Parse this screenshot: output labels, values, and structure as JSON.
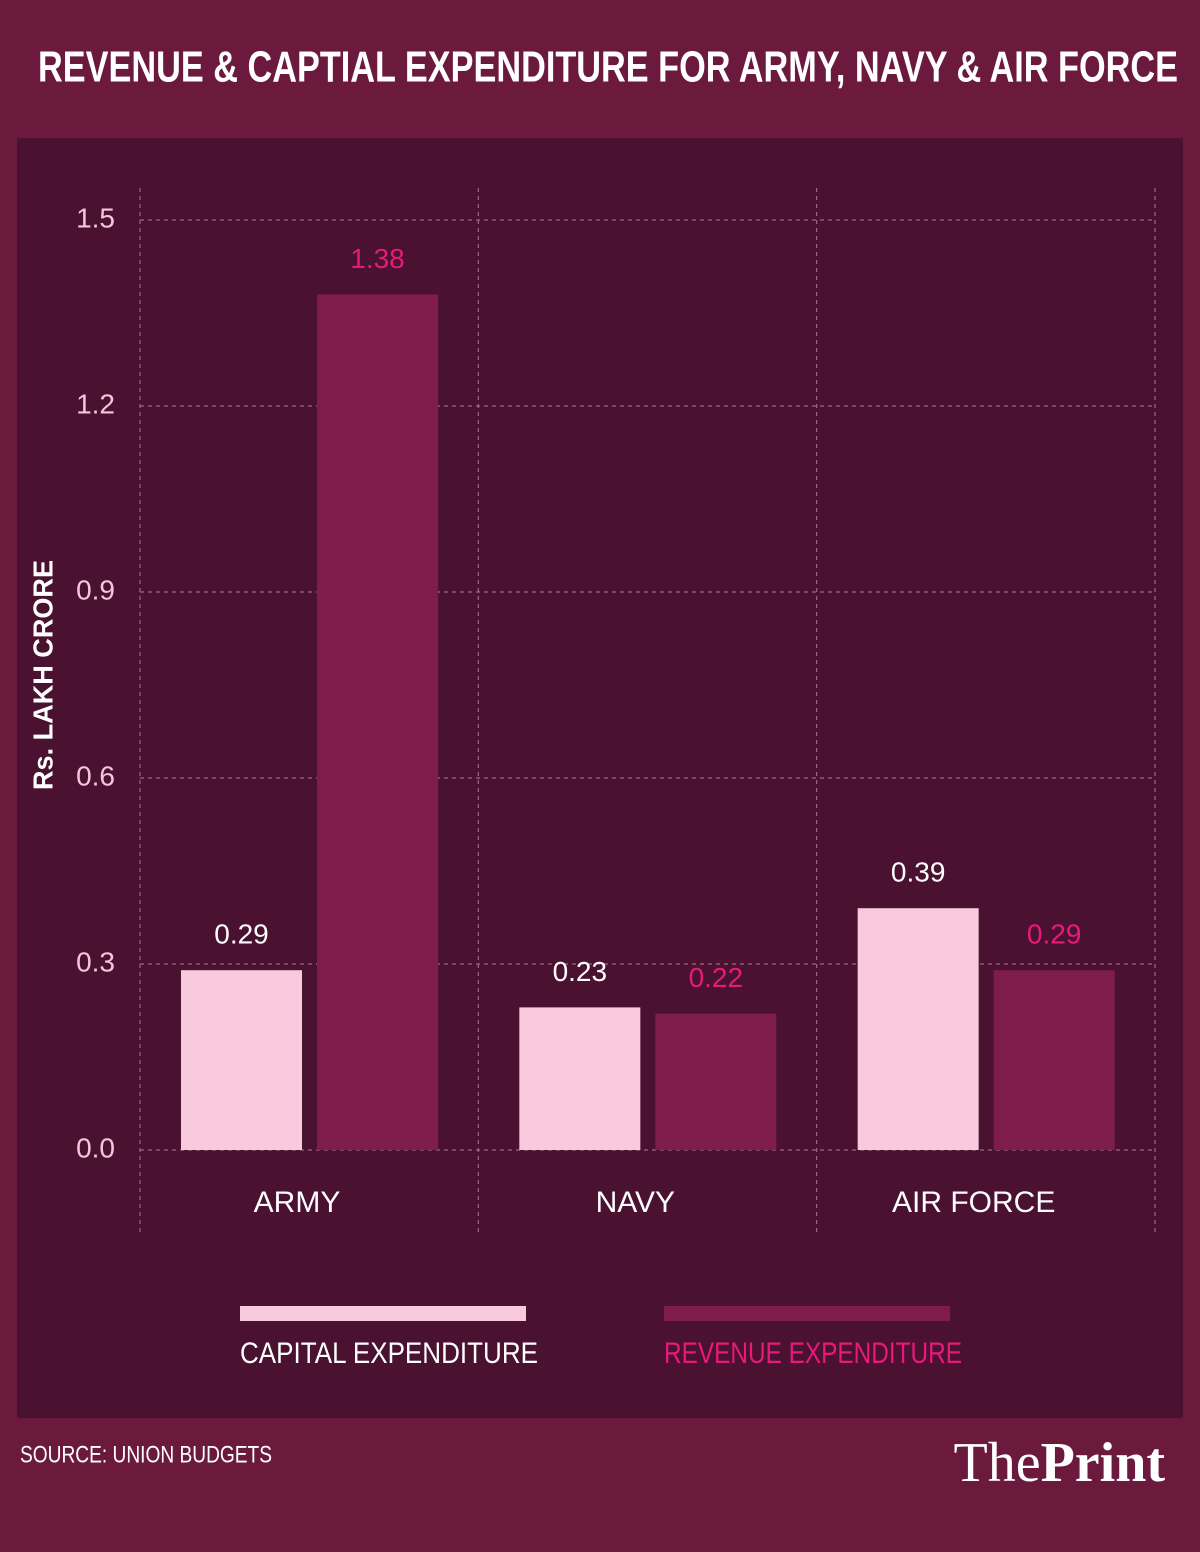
{
  "chart_data": {
    "type": "bar",
    "title": "REVENUE & CAPTIAL EXPENDITURE FOR ARMY, NAVY & AIR FORCE",
    "y_label": "Rs. LAKH CRORE",
    "categories": [
      "ARMY",
      "NAVY",
      "AIR FORCE"
    ],
    "series": [
      {
        "name": "CAPITAL EXPENDITURE",
        "color": "#f9c9dd",
        "label_color": "#ffffff",
        "values": [
          0.29,
          0.23,
          0.39
        ]
      },
      {
        "name": "REVENUE EXPENDITURE",
        "color": "#7f1d4a",
        "label_color": "#e8197a",
        "values": [
          1.38,
          0.22,
          0.29
        ]
      }
    ],
    "ylim": [
      0,
      1.5
    ],
    "yticks": [
      {
        "value": 0,
        "label": "0.0"
      },
      0.3,
      0.6,
      0.9,
      1.2,
      1.5
    ],
    "grid": true,
    "legend": "bottom",
    "source": "SOURCE: UNION BUDGETS",
    "logo": [
      "The",
      "Print"
    ]
  }
}
